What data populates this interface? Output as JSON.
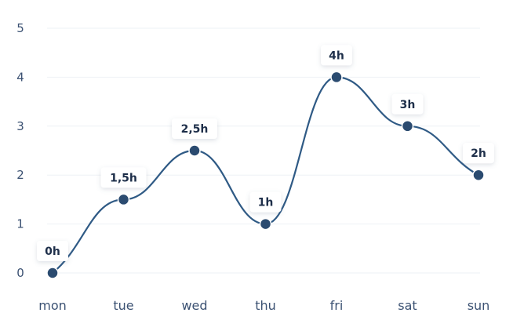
{
  "chart_data": {
    "type": "line",
    "categories": [
      "mon",
      "tue",
      "wed",
      "thu",
      "fri",
      "sat",
      "sun"
    ],
    "series": [
      {
        "values": [
          0,
          1.5,
          2.5,
          1,
          4,
          3,
          2
        ],
        "data_labels": [
          "0h",
          "1,5h",
          "2,5h",
          "1h",
          "4h",
          "3h",
          "2h"
        ]
      }
    ],
    "y_ticks": [
      "0",
      "1",
      "2",
      "3",
      "4",
      "5"
    ],
    "ylim": [
      0,
      5
    ],
    "grid": true,
    "smooth": true,
    "colors": {
      "line": "#2f5a85",
      "point": "#2b4b70",
      "axis_text": "#3c5273",
      "grid": "#eef1f5"
    }
  }
}
